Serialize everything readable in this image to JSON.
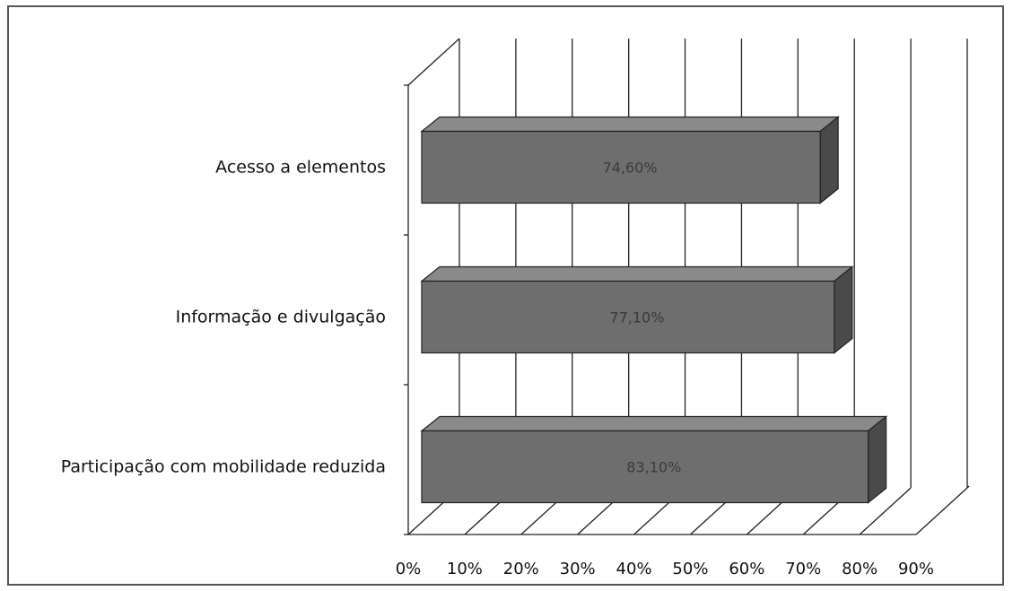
{
  "chart_data": {
    "type": "bar",
    "orientation": "horizontal",
    "style": "3d",
    "title": "",
    "xlabel": "",
    "ylabel": "",
    "categories": [
      "Acesso a elementos",
      "Informação e divulgação",
      "Participação com mobilidade reduzida"
    ],
    "values": [
      74.6,
      77.1,
      83.1
    ],
    "data_labels": [
      "74,60%",
      "77,10%",
      "83,10%"
    ],
    "xlim": [
      0,
      90
    ],
    "x_ticks": [
      "0%",
      "10%",
      "20%",
      "30%",
      "40%",
      "50%",
      "60%",
      "70%",
      "80%",
      "90%"
    ],
    "grid": true,
    "legend": "none",
    "colors": {
      "bar_front": "#6e6e6e",
      "bar_top": "#8a8a8a",
      "bar_side": "#4a4a4a",
      "grid": "#222222"
    }
  }
}
